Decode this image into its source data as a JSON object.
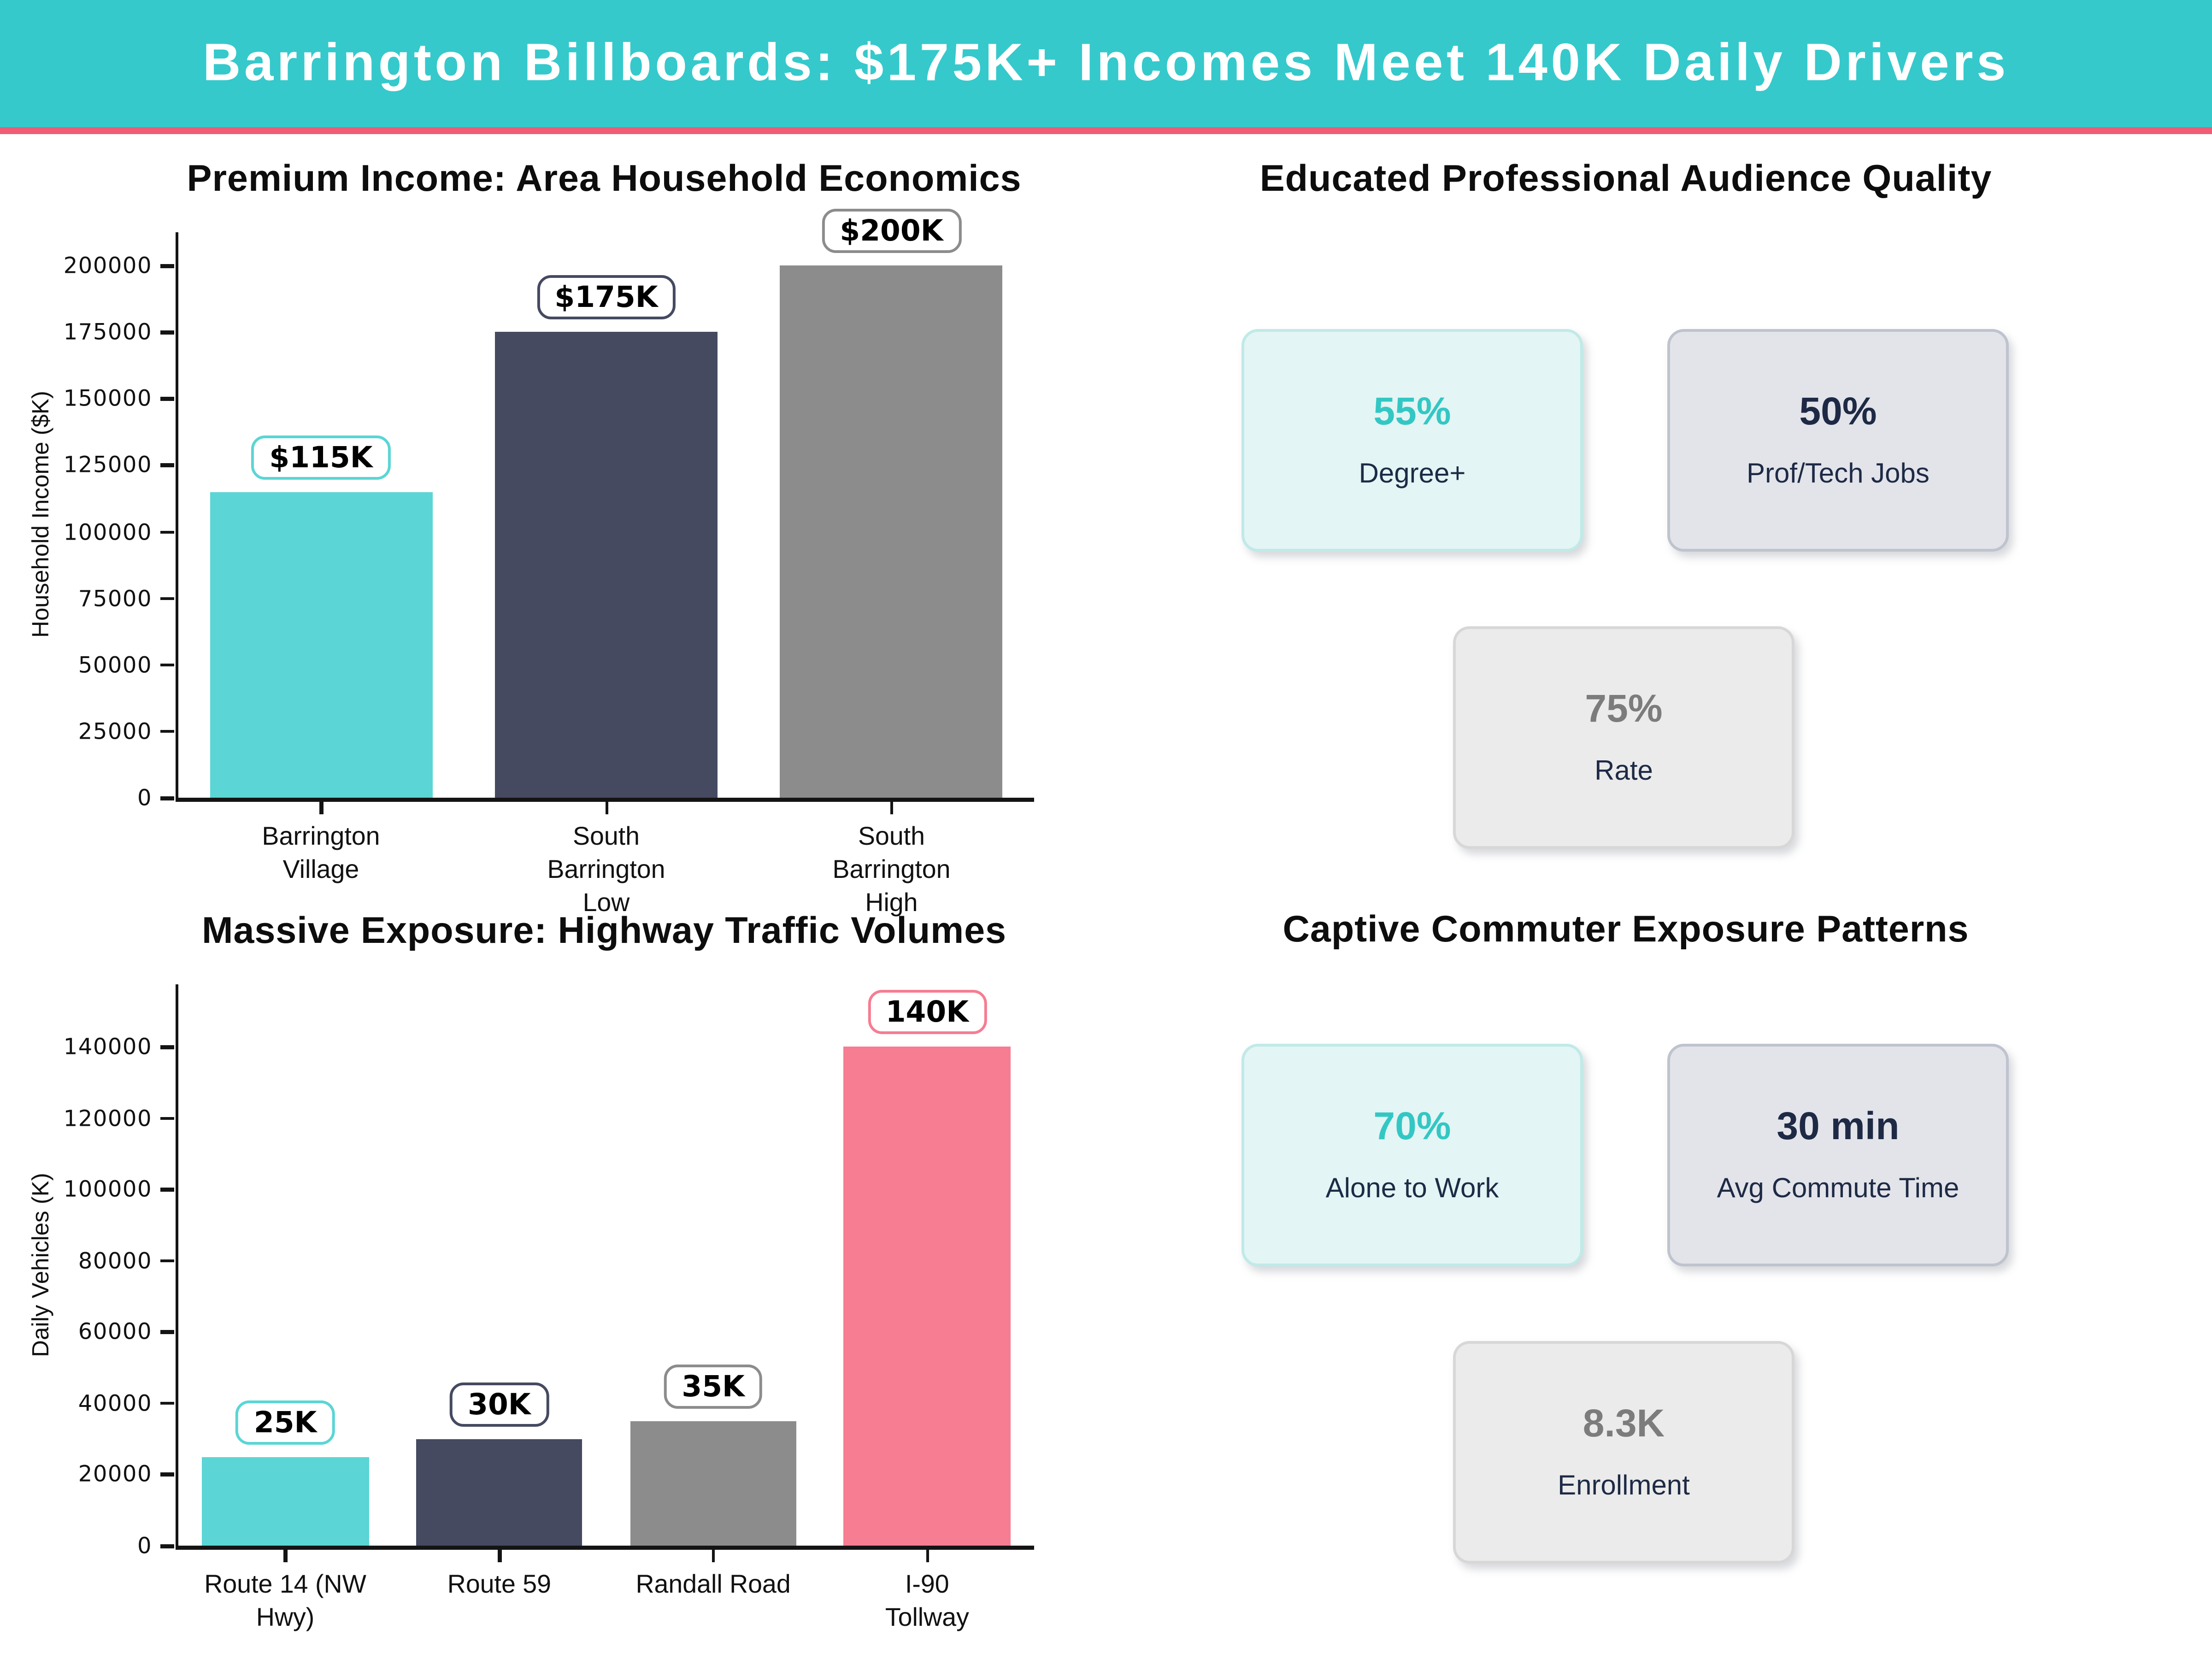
{
  "header": {
    "title": "Barrington Billboards: $175K+ Incomes Meet 140K Daily Drivers"
  },
  "theme": {
    "header_bg": "#35C9CC",
    "header_underline": "#EE5C76",
    "text_dark": "#0D0D0D",
    "card_label_color": "#1E2A45",
    "card_styles": {
      "mint": {
        "bg": "#E3F5F4",
        "border": "#BFEAE8"
      },
      "lavender": {
        "bg": "#E2E4EA",
        "border": "#BFC3CE"
      },
      "gray": {
        "bg": "#EBEBEB",
        "border": "#D7D7D7"
      }
    }
  },
  "chart_data": [
    {
      "type": "bar",
      "title": "Premium Income: Area Household Economics",
      "xlabel": "",
      "ylabel": "Household Income ($K)",
      "categories": [
        "Barrington\nVillage",
        "South\nBarrington\nLow",
        "South\nBarrington\nHigh"
      ],
      "values": [
        115000,
        175000,
        200000
      ],
      "bar_labels": [
        "$115K",
        "$175K",
        "$200K"
      ],
      "bar_colors": [
        "#5BD5D5",
        "#454A61",
        "#8C8C8C"
      ],
      "yticks": [
        0,
        25000,
        50000,
        75000,
        100000,
        125000,
        150000,
        175000,
        200000
      ],
      "ylim": [
        0,
        212500
      ],
      "grid": false,
      "legend": null
    },
    {
      "type": "bar",
      "title": "Massive Exposure: Highway Traffic Volumes",
      "xlabel": "",
      "ylabel": "Daily Vehicles (K)",
      "categories": [
        "Route 14 (NW\nHwy)",
        "Route 59",
        "Randall Road",
        "I-90 Tollway"
      ],
      "values": [
        25000,
        30000,
        35000,
        140000
      ],
      "bar_labels": [
        "25K",
        "30K",
        "35K",
        "140K"
      ],
      "bar_colors": [
        "#5BD5D5",
        "#454A61",
        "#8C8C8C",
        "#F67D92"
      ],
      "yticks": [
        0,
        20000,
        40000,
        60000,
        80000,
        100000,
        120000,
        140000
      ],
      "ylim": [
        0,
        157500
      ],
      "grid": false,
      "legend": null
    }
  ],
  "panels": [
    {
      "title": "Educated Professional Audience Quality",
      "cards": [
        {
          "value": "55%",
          "label": "Degree+",
          "style": "mint",
          "value_color": "#33C7C4"
        },
        {
          "value": "50%",
          "label": "Prof/Tech Jobs",
          "style": "lavender",
          "value_color": "#1E2A45"
        },
        {
          "value": "75%",
          "label": "Rate",
          "style": "gray",
          "value_color": "#7C7C7C"
        }
      ]
    },
    {
      "title": "Captive Commuter Exposure Patterns",
      "cards": [
        {
          "value": "70%",
          "label": "Alone to Work",
          "style": "mint",
          "value_color": "#33C7C4"
        },
        {
          "value": "30 min",
          "label": "Avg Commute Time",
          "style": "lavender",
          "value_color": "#1E2A45"
        },
        {
          "value": "8.3K",
          "label": "Enrollment",
          "style": "gray",
          "value_color": "#7C7C7C"
        }
      ]
    }
  ]
}
